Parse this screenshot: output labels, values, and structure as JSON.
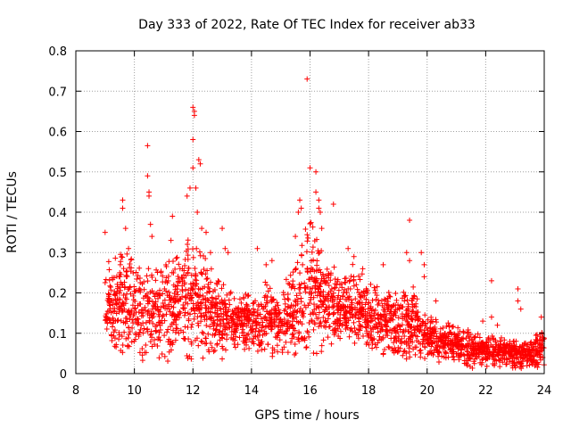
{
  "chart_data": {
    "type": "scatter",
    "title": "Day 333 of 2022, Rate Of TEC Index for receiver ab33",
    "xlabel": "GPS time / hours",
    "ylabel": "ROTI / TECUs",
    "xlim": [
      8,
      24
    ],
    "ylim": [
      0,
      0.8
    ],
    "xticks": [
      "8",
      "10",
      "12",
      "14",
      "16",
      "18",
      "20",
      "22",
      "24"
    ],
    "yticks": [
      "0",
      "0.1",
      "0.2",
      "0.3",
      "0.4",
      "0.5",
      "0.6",
      "0.7",
      "0.8"
    ],
    "grid": true,
    "marker": "plus",
    "series": [
      {
        "name": "ROTI",
        "color": "#ff0000",
        "profile": [
          {
            "x": 9.0,
            "lo": 0.07,
            "hi": 0.27
          },
          {
            "x": 9.5,
            "lo": 0.03,
            "hi": 0.32
          },
          {
            "x": 10.0,
            "lo": 0.02,
            "hi": 0.3
          },
          {
            "x": 10.5,
            "lo": 0.03,
            "hi": 0.28
          },
          {
            "x": 11.0,
            "lo": 0.02,
            "hi": 0.3
          },
          {
            "x": 11.5,
            "lo": 0.03,
            "hi": 0.32
          },
          {
            "x": 12.0,
            "lo": 0.02,
            "hi": 0.36
          },
          {
            "x": 12.5,
            "lo": 0.03,
            "hi": 0.28
          },
          {
            "x": 13.0,
            "lo": 0.03,
            "hi": 0.24
          },
          {
            "x": 13.5,
            "lo": 0.05,
            "hi": 0.2
          },
          {
            "x": 14.0,
            "lo": 0.04,
            "hi": 0.22
          },
          {
            "x": 14.5,
            "lo": 0.03,
            "hi": 0.24
          },
          {
            "x": 15.0,
            "lo": 0.03,
            "hi": 0.22
          },
          {
            "x": 15.5,
            "lo": 0.03,
            "hi": 0.3
          },
          {
            "x": 16.0,
            "lo": 0.02,
            "hi": 0.42
          },
          {
            "x": 16.5,
            "lo": 0.06,
            "hi": 0.3
          },
          {
            "x": 17.0,
            "lo": 0.06,
            "hi": 0.26
          },
          {
            "x": 17.5,
            "lo": 0.05,
            "hi": 0.28
          },
          {
            "x": 18.0,
            "lo": 0.05,
            "hi": 0.24
          },
          {
            "x": 18.5,
            "lo": 0.03,
            "hi": 0.22
          },
          {
            "x": 19.0,
            "lo": 0.03,
            "hi": 0.2
          },
          {
            "x": 19.5,
            "lo": 0.04,
            "hi": 0.24
          },
          {
            "x": 20.0,
            "lo": 0.03,
            "hi": 0.15
          },
          {
            "x": 20.5,
            "lo": 0.02,
            "hi": 0.14
          },
          {
            "x": 21.0,
            "lo": 0.02,
            "hi": 0.12
          },
          {
            "x": 21.5,
            "lo": 0.01,
            "hi": 0.11
          },
          {
            "x": 22.0,
            "lo": 0.01,
            "hi": 0.1
          },
          {
            "x": 22.5,
            "lo": 0.01,
            "hi": 0.1
          },
          {
            "x": 23.0,
            "lo": 0.01,
            "hi": 0.09
          },
          {
            "x": 23.5,
            "lo": 0.01,
            "hi": 0.08
          },
          {
            "x": 24.0,
            "lo": 0.01,
            "hi": 0.13
          }
        ],
        "points": [
          [
            9.0,
            0.35
          ],
          [
            9.6,
            0.43
          ],
          [
            9.6,
            0.41
          ],
          [
            9.7,
            0.36
          ],
          [
            9.8,
            0.31
          ],
          [
            10.45,
            0.565
          ],
          [
            10.45,
            0.49
          ],
          [
            10.5,
            0.45
          ],
          [
            10.5,
            0.44
          ],
          [
            10.55,
            0.37
          ],
          [
            10.6,
            0.34
          ],
          [
            11.25,
            0.33
          ],
          [
            11.3,
            0.39
          ],
          [
            11.8,
            0.44
          ],
          [
            11.9,
            0.46
          ],
          [
            12.0,
            0.58
          ],
          [
            12.0,
            0.66
          ],
          [
            12.05,
            0.64
          ],
          [
            12.05,
            0.65
          ],
          [
            12.0,
            0.51
          ],
          [
            12.1,
            0.46
          ],
          [
            12.2,
            0.53
          ],
          [
            12.25,
            0.52
          ],
          [
            12.15,
            0.4
          ],
          [
            12.3,
            0.36
          ],
          [
            12.45,
            0.35
          ],
          [
            12.6,
            0.3
          ],
          [
            13.0,
            0.36
          ],
          [
            13.1,
            0.31
          ],
          [
            13.2,
            0.3
          ],
          [
            14.2,
            0.31
          ],
          [
            14.5,
            0.27
          ],
          [
            14.7,
            0.28
          ],
          [
            15.5,
            0.34
          ],
          [
            15.6,
            0.4
          ],
          [
            15.65,
            0.43
          ],
          [
            15.7,
            0.41
          ],
          [
            15.9,
            0.73
          ],
          [
            16.0,
            0.51
          ],
          [
            16.2,
            0.5
          ],
          [
            16.2,
            0.45
          ],
          [
            16.3,
            0.43
          ],
          [
            16.3,
            0.41
          ],
          [
            16.35,
            0.4
          ],
          [
            16.4,
            0.36
          ],
          [
            16.8,
            0.42
          ],
          [
            17.3,
            0.31
          ],
          [
            17.5,
            0.29
          ],
          [
            17.8,
            0.26
          ],
          [
            18.5,
            0.27
          ],
          [
            19.3,
            0.3
          ],
          [
            19.4,
            0.38
          ],
          [
            19.4,
            0.28
          ],
          [
            19.8,
            0.3
          ],
          [
            19.9,
            0.27
          ],
          [
            19.9,
            0.24
          ],
          [
            20.3,
            0.18
          ],
          [
            22.2,
            0.23
          ],
          [
            22.2,
            0.14
          ],
          [
            23.1,
            0.21
          ],
          [
            23.1,
            0.18
          ],
          [
            23.2,
            0.16
          ],
          [
            21.9,
            0.13
          ],
          [
            22.4,
            0.12
          ],
          [
            23.9,
            0.14
          ]
        ]
      }
    ]
  }
}
